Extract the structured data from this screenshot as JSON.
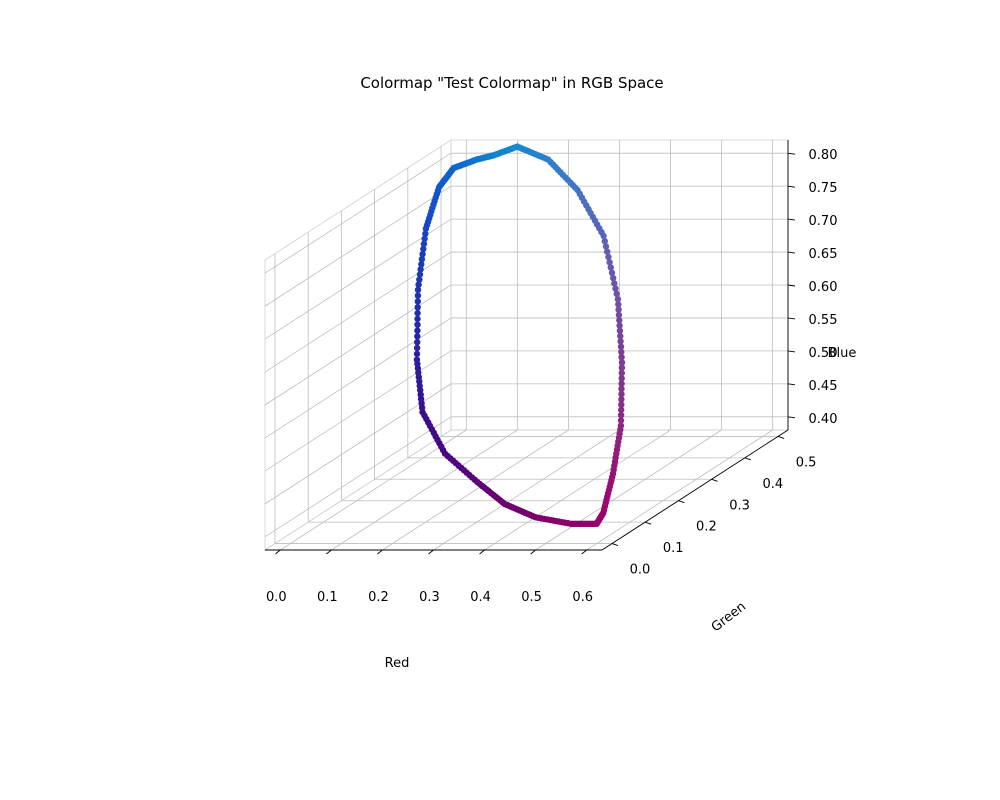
{
  "chart_data": {
    "type": "scatter",
    "title": "Colormap \"Test Colormap\" in RGB Space",
    "xlabel": "Red",
    "ylabel": "Green",
    "zlabel": "Blue",
    "x_ticks": [
      "0.0",
      "0.1",
      "0.2",
      "0.3",
      "0.4",
      "0.5",
      "0.6"
    ],
    "y_ticks": [
      "0.0",
      "0.1",
      "0.2",
      "0.3",
      "0.4",
      "0.5"
    ],
    "z_ticks": [
      "0.40",
      "0.45",
      "0.50",
      "0.55",
      "0.60",
      "0.65",
      "0.70",
      "0.75",
      "0.80"
    ],
    "xlim": [
      -0.03,
      0.63
    ],
    "ylim": [
      -0.03,
      0.53
    ],
    "zlim": [
      0.38,
      0.82
    ],
    "grid": true,
    "series": [
      {
        "points": [
          [
            0.06,
            0.52,
            0.8
          ],
          [
            0.06,
            0.47,
            0.81
          ],
          [
            0.06,
            0.4,
            0.82
          ],
          [
            0.07,
            0.34,
            0.81
          ],
          [
            0.09,
            0.27,
            0.77
          ],
          [
            0.12,
            0.2,
            0.7
          ],
          [
            0.17,
            0.12,
            0.62
          ],
          [
            0.22,
            0.06,
            0.56
          ],
          [
            0.29,
            0.02,
            0.51
          ],
          [
            0.36,
            0.01,
            0.47
          ],
          [
            0.42,
            0.0,
            0.44
          ],
          [
            0.48,
            0.0,
            0.42
          ],
          [
            0.55,
            0.0,
            0.41
          ],
          [
            0.6,
            0.0,
            0.41
          ],
          [
            0.6,
            0.02,
            0.42
          ],
          [
            0.58,
            0.08,
            0.46
          ],
          [
            0.55,
            0.15,
            0.51
          ],
          [
            0.5,
            0.23,
            0.58
          ],
          [
            0.44,
            0.31,
            0.65
          ],
          [
            0.36,
            0.39,
            0.72
          ],
          [
            0.27,
            0.45,
            0.77
          ],
          [
            0.18,
            0.5,
            0.8
          ],
          [
            0.1,
            0.53,
            0.81
          ],
          [
            0.06,
            0.52,
            0.8
          ]
        ]
      }
    ]
  }
}
